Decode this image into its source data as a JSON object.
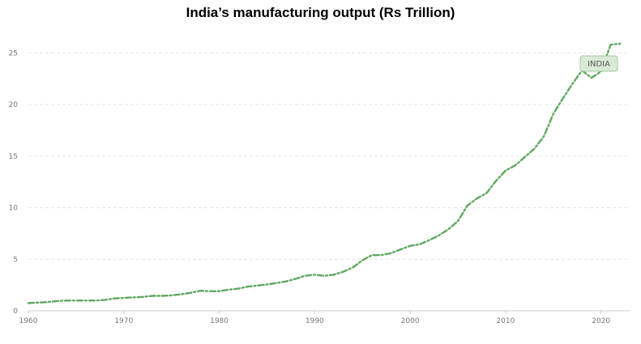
{
  "chart_data": {
    "type": "line",
    "title": "India’s manufacturing output (Rs Trillion)",
    "xlabel": "",
    "ylabel": "",
    "xlim": [
      1960,
      2023
    ],
    "ylim": [
      0,
      27
    ],
    "grid": true,
    "x_ticks": [
      1960,
      1970,
      1980,
      1990,
      2000,
      2010,
      2020
    ],
    "y_ticks": [
      0,
      5,
      10,
      15,
      20,
      25
    ],
    "series": [
      {
        "name": "INDIA",
        "color": "#5fa85f",
        "x": [
          1960,
          1961,
          1962,
          1963,
          1964,
          1965,
          1966,
          1967,
          1968,
          1969,
          1970,
          1971,
          1972,
          1973,
          1974,
          1975,
          1976,
          1977,
          1978,
          1979,
          1980,
          1981,
          1982,
          1983,
          1984,
          1985,
          1986,
          1987,
          1988,
          1989,
          1990,
          1991,
          1992,
          1993,
          1994,
          1995,
          1996,
          1997,
          1998,
          1999,
          2000,
          2001,
          2002,
          2003,
          2004,
          2005,
          2006,
          2007,
          2008,
          2009,
          2010,
          2011,
          2012,
          2013,
          2014,
          2015,
          2016,
          2017,
          2018,
          2019,
          2020,
          2021,
          2022
        ],
        "values": [
          0.75,
          0.8,
          0.85,
          0.95,
          1.0,
          1.0,
          1.0,
          1.0,
          1.05,
          1.2,
          1.25,
          1.3,
          1.35,
          1.45,
          1.45,
          1.5,
          1.6,
          1.75,
          1.95,
          1.9,
          1.9,
          2.05,
          2.15,
          2.35,
          2.45,
          2.55,
          2.7,
          2.85,
          3.1,
          3.4,
          3.5,
          3.4,
          3.5,
          3.8,
          4.2,
          4.9,
          5.4,
          5.4,
          5.6,
          5.95,
          6.3,
          6.45,
          6.85,
          7.3,
          7.9,
          8.7,
          10.2,
          10.9,
          11.4,
          12.6,
          13.6,
          14.1,
          14.9,
          15.7,
          16.9,
          19.1,
          20.6,
          22.0,
          23.3,
          22.6,
          23.2,
          25.8,
          25.9
        ]
      }
    ],
    "legend": {
      "label": "INDIA",
      "position": "top-right"
    }
  }
}
